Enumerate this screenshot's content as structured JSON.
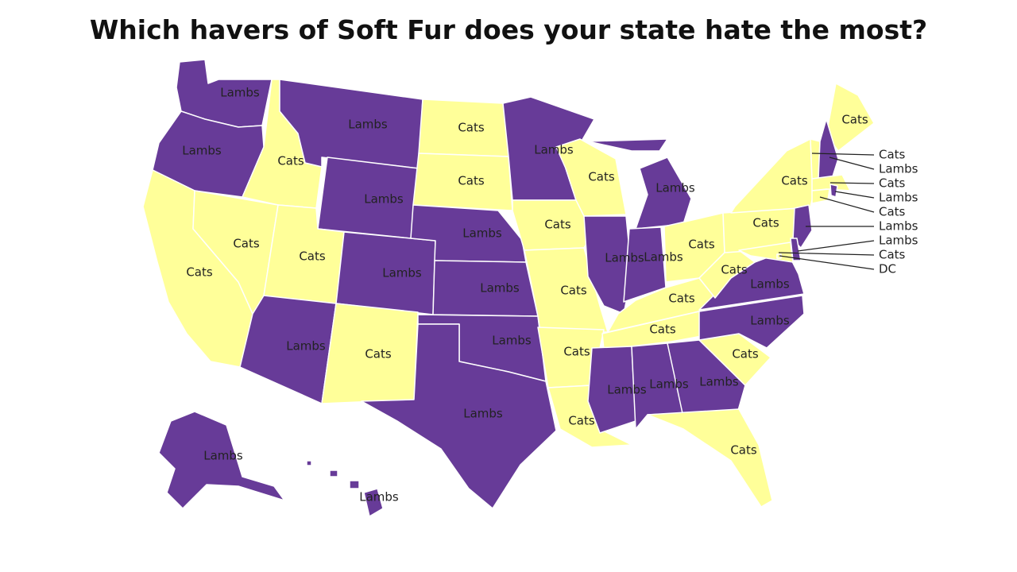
{
  "title": "Which havers of Soft Fur does your state hate the most?",
  "colors": {
    "Lambs": "#673b98",
    "Cats": "#ffff99"
  },
  "states": [
    {
      "id": "WA",
      "value": "Lambs"
    },
    {
      "id": "OR",
      "value": "Lambs"
    },
    {
      "id": "CA",
      "value": "Cats"
    },
    {
      "id": "ID",
      "value": "Cats"
    },
    {
      "id": "NV",
      "value": "Cats"
    },
    {
      "id": "MT",
      "value": "Lambs"
    },
    {
      "id": "WY",
      "value": "Lambs"
    },
    {
      "id": "UT",
      "value": "Cats"
    },
    {
      "id": "AZ",
      "value": "Lambs"
    },
    {
      "id": "CO",
      "value": "Lambs"
    },
    {
      "id": "NM",
      "value": "Cats"
    },
    {
      "id": "ND",
      "value": "Cats"
    },
    {
      "id": "SD",
      "value": "Cats"
    },
    {
      "id": "NE",
      "value": "Lambs"
    },
    {
      "id": "KS",
      "value": "Lambs"
    },
    {
      "id": "OK",
      "value": "Lambs"
    },
    {
      "id": "TX",
      "value": "Lambs"
    },
    {
      "id": "MN",
      "value": "Lambs"
    },
    {
      "id": "IA",
      "value": "Cats"
    },
    {
      "id": "MO",
      "value": "Cats"
    },
    {
      "id": "AR",
      "value": "Cats"
    },
    {
      "id": "LA",
      "value": "Cats"
    },
    {
      "id": "WI",
      "value": "Cats"
    },
    {
      "id": "IL",
      "value": "Lambs"
    },
    {
      "id": "MI",
      "value": "Lambs"
    },
    {
      "id": "IN",
      "value": "Lambs"
    },
    {
      "id": "OH",
      "value": "Cats"
    },
    {
      "id": "KY",
      "value": "Cats"
    },
    {
      "id": "TN",
      "value": "Cats"
    },
    {
      "id": "MS",
      "value": "Lambs"
    },
    {
      "id": "AL",
      "value": "Lambs"
    },
    {
      "id": "GA",
      "value": "Lambs"
    },
    {
      "id": "FL",
      "value": "Cats"
    },
    {
      "id": "SC",
      "value": "Cats"
    },
    {
      "id": "NC",
      "value": "Lambs"
    },
    {
      "id": "VA",
      "value": "Lambs"
    },
    {
      "id": "WV",
      "value": "Cats"
    },
    {
      "id": "PA",
      "value": "Cats"
    },
    {
      "id": "NY",
      "value": "Cats"
    },
    {
      "id": "ME",
      "value": "Cats"
    },
    {
      "id": "VT",
      "value": "Cats"
    },
    {
      "id": "NH",
      "value": "Lambs"
    },
    {
      "id": "MA",
      "value": "Cats"
    },
    {
      "id": "RI",
      "value": "Lambs"
    },
    {
      "id": "CT",
      "value": "Cats"
    },
    {
      "id": "NJ",
      "value": "Lambs"
    },
    {
      "id": "DE",
      "value": "Lambs"
    },
    {
      "id": "MD",
      "value": "Cats"
    },
    {
      "id": "DC",
      "value": "Cats"
    },
    {
      "id": "AK",
      "value": "Lambs"
    },
    {
      "id": "HI",
      "value": "Lambs"
    }
  ],
  "callout_labels": [
    "Cats",
    "Lambs",
    "Cats",
    "Lambs",
    "Cats",
    "Lambs",
    "Lambs",
    "Cats",
    "DC"
  ]
}
